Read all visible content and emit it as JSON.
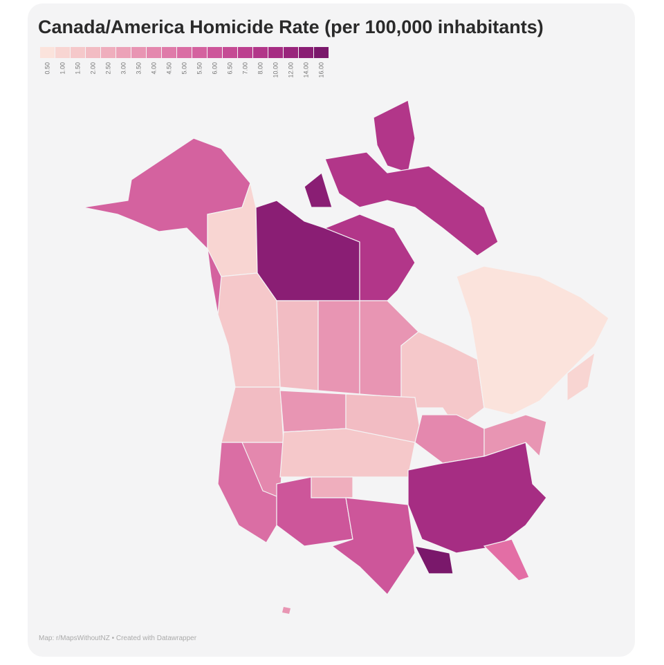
{
  "title": "Canada/America Homicide Rate (per 100,000 inhabitants)",
  "legend": {
    "items": [
      {
        "label": "0.50",
        "color": "#fbe3dc"
      },
      {
        "label": "1.00",
        "color": "#f8d5d2"
      },
      {
        "label": "1.50",
        "color": "#f5c8ca"
      },
      {
        "label": "2.00",
        "color": "#f2bcc3"
      },
      {
        "label": "2.50",
        "color": "#efaebd"
      },
      {
        "label": "3.00",
        "color": "#eca2b8"
      },
      {
        "label": "3.50",
        "color": "#e895b3"
      },
      {
        "label": "4.00",
        "color": "#e488ae"
      },
      {
        "label": "4.50",
        "color": "#df7ba9"
      },
      {
        "label": "5.00",
        "color": "#da6ea4"
      },
      {
        "label": "5.50",
        "color": "#d4629f"
      },
      {
        "label": "6.00",
        "color": "#cd569a"
      },
      {
        "label": "6.50",
        "color": "#c54b94"
      },
      {
        "label": "7.00",
        "color": "#bc408f"
      },
      {
        "label": "8.00",
        "color": "#b23689"
      },
      {
        "label": "10.00",
        "color": "#a62d83"
      },
      {
        "label": "12.00",
        "color": "#99257c"
      },
      {
        "label": "14.00",
        "color": "#8a1e74"
      },
      {
        "label": "16.00",
        "color": "#7a186b"
      }
    ]
  },
  "footer": "Map: r/MapsWithoutNZ • Created with Datawrapper"
}
